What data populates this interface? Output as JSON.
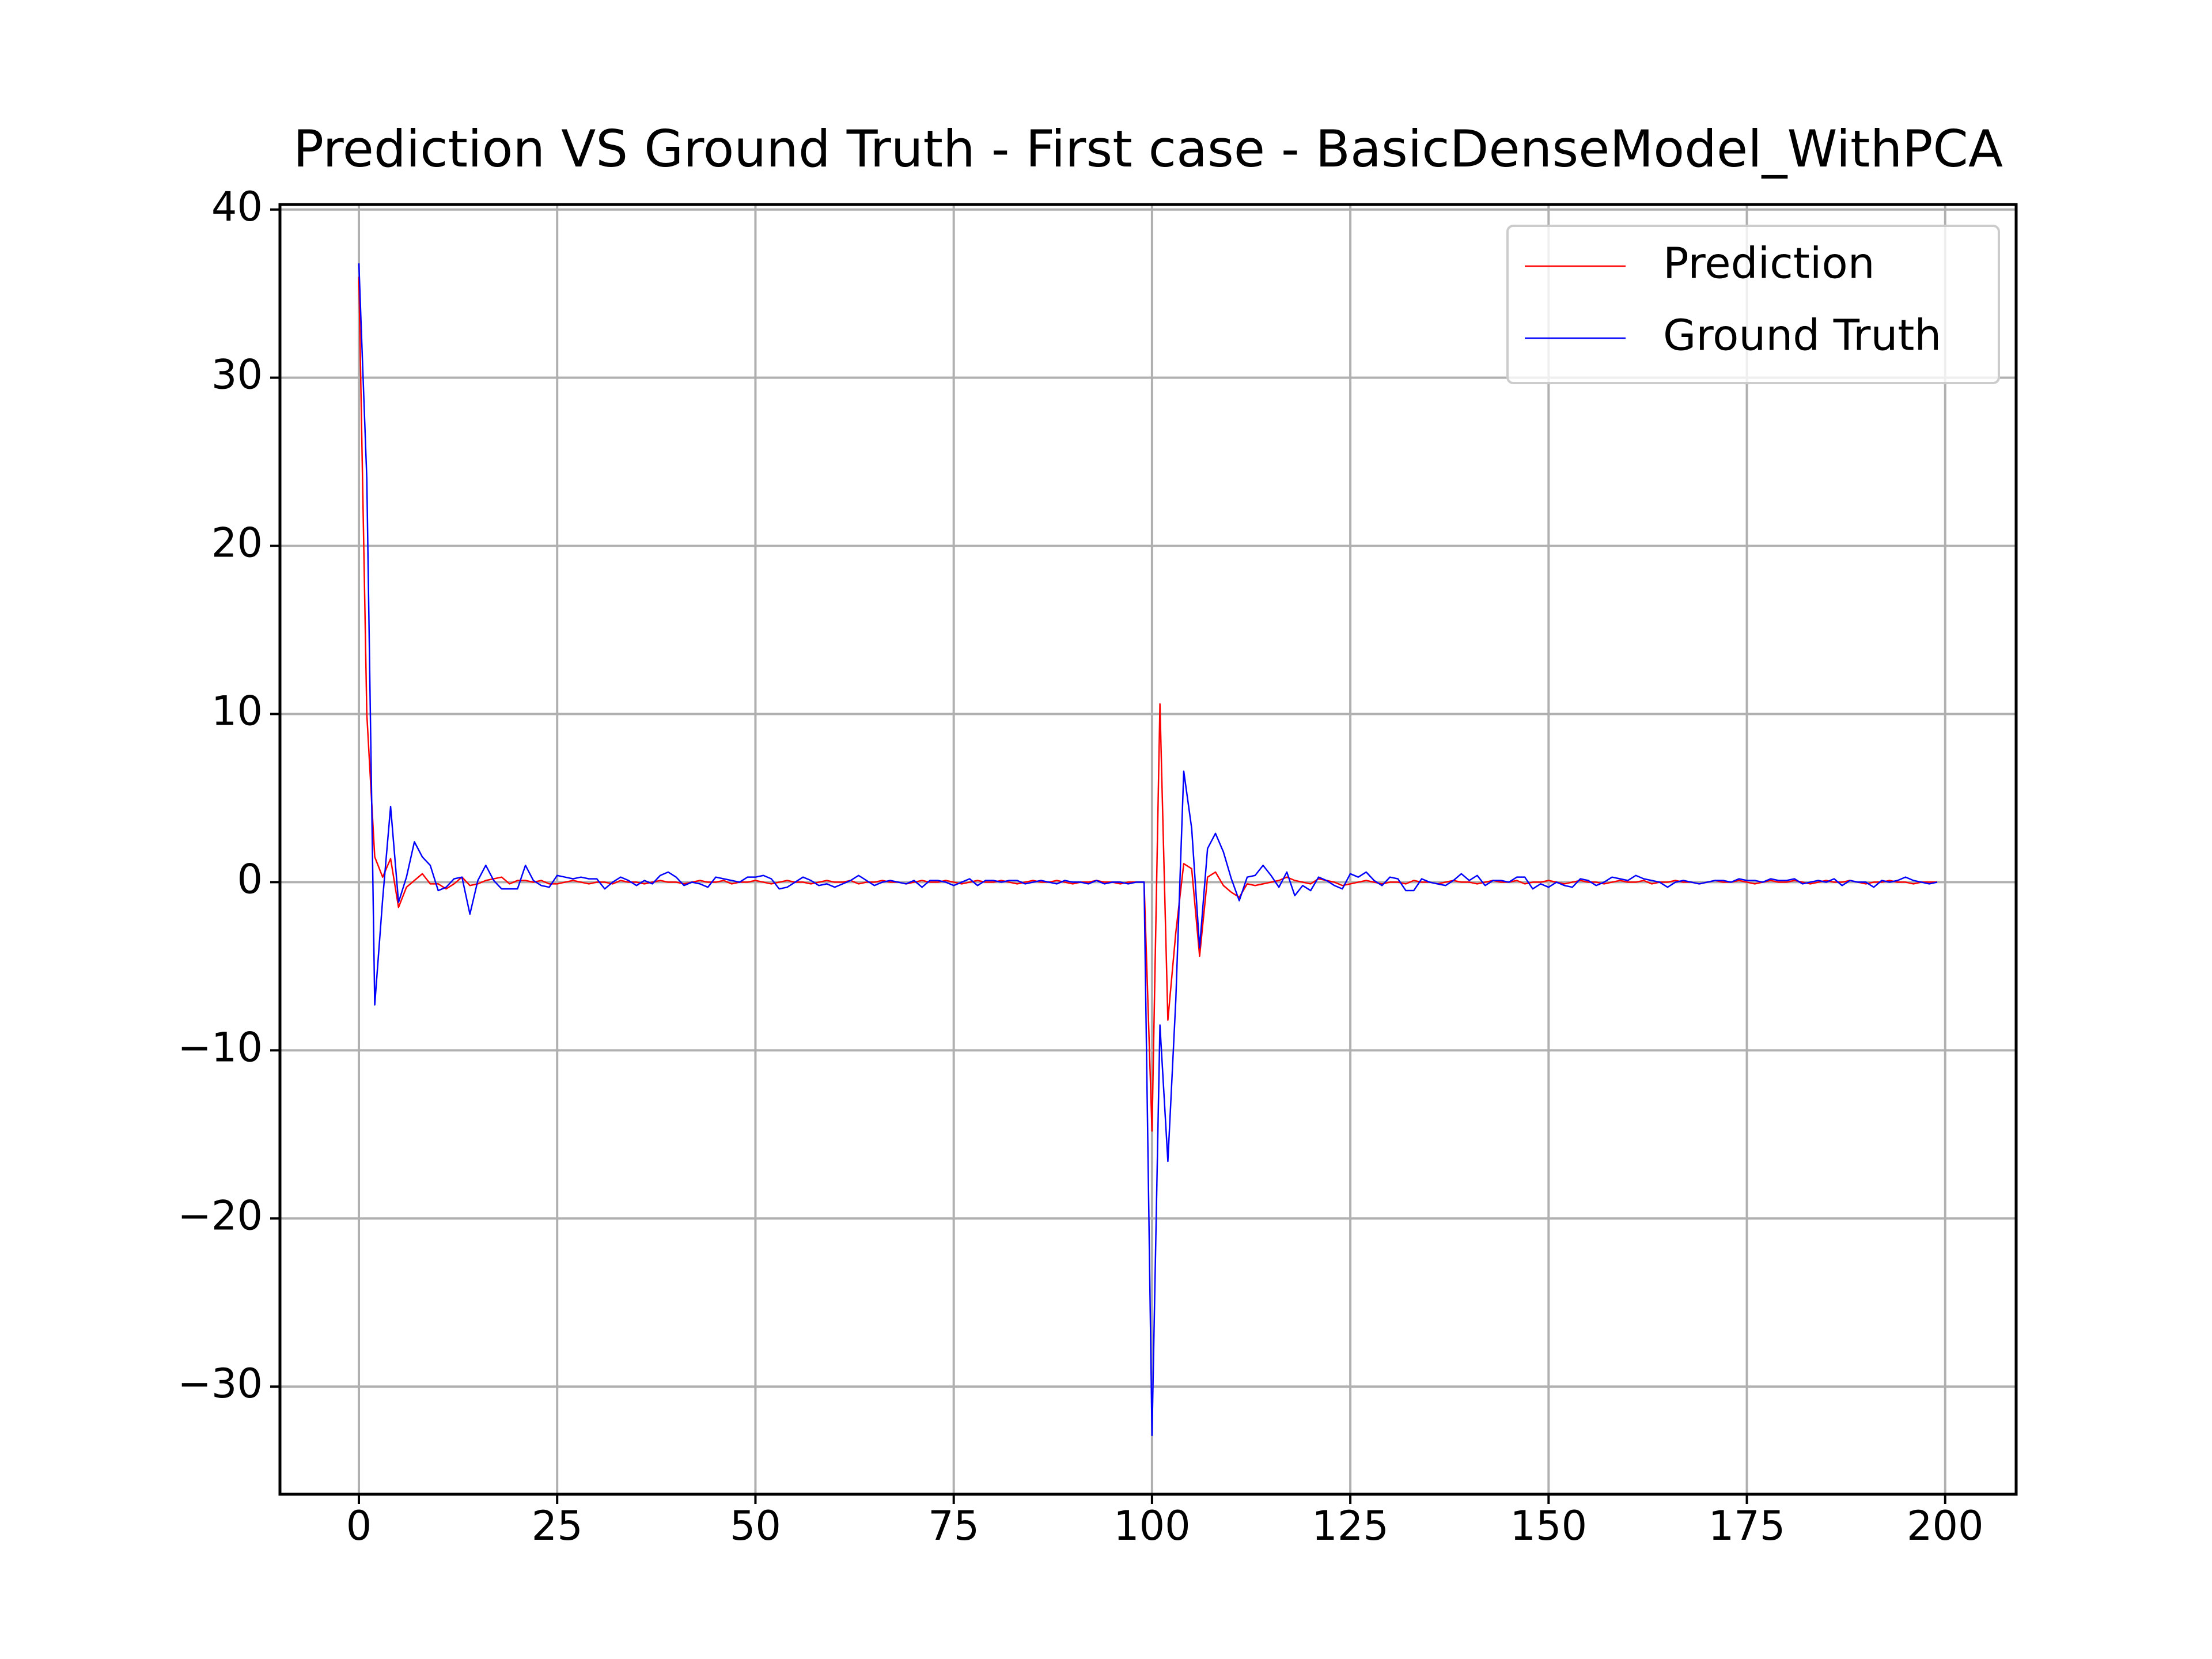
{
  "chart_data": {
    "type": "line",
    "title": "Prediction VS Ground Truth - First case - BasicDenseModel_WithPCA",
    "x": [
      0,
      1,
      2,
      3,
      4,
      5,
      6,
      7,
      8,
      9,
      10,
      11,
      12,
      13,
      14,
      15,
      16,
      17,
      18,
      19,
      20,
      21,
      22,
      23,
      24,
      25,
      26,
      27,
      28,
      29,
      30,
      31,
      32,
      33,
      34,
      35,
      36,
      37,
      38,
      39,
      40,
      41,
      42,
      43,
      44,
      45,
      46,
      47,
      48,
      49,
      50,
      51,
      52,
      53,
      54,
      55,
      56,
      57,
      58,
      59,
      60,
      61,
      62,
      63,
      64,
      65,
      66,
      67,
      68,
      69,
      70,
      71,
      72,
      73,
      74,
      75,
      76,
      77,
      78,
      79,
      80,
      81,
      82,
      83,
      84,
      85,
      86,
      87,
      88,
      89,
      90,
      91,
      92,
      93,
      94,
      95,
      96,
      97,
      98,
      99,
      100,
      101,
      102,
      103,
      104,
      105,
      106,
      107,
      108,
      109,
      110,
      111,
      112,
      113,
      114,
      115,
      116,
      117,
      118,
      119,
      120,
      121,
      122,
      123,
      124,
      125,
      126,
      127,
      128,
      129,
      130,
      131,
      132,
      133,
      134,
      135,
      136,
      137,
      138,
      139,
      140,
      141,
      142,
      143,
      144,
      145,
      146,
      147,
      148,
      149,
      150,
      151,
      152,
      153,
      154,
      155,
      156,
      157,
      158,
      159,
      160,
      161,
      162,
      163,
      164,
      165,
      166,
      167,
      168,
      169,
      170,
      171,
      172,
      173,
      174,
      175,
      176,
      177,
      178,
      179,
      180,
      181,
      182,
      183,
      184,
      185,
      186,
      187,
      188,
      189,
      190,
      191,
      192,
      193,
      194,
      195,
      196,
      197,
      198,
      199
    ],
    "series": [
      {
        "name": "Prediction",
        "color": "#ff0000",
        "values": [
          36.0,
          10.0,
          1.5,
          0.3,
          1.4,
          -1.5,
          -0.3,
          0.1,
          0.5,
          -0.1,
          -0.1,
          -0.4,
          -0.1,
          0.3,
          -0.2,
          -0.1,
          0.1,
          0.2,
          0.3,
          -0.1,
          0.1,
          0.1,
          0.0,
          0.1,
          -0.1,
          -0.1,
          0.0,
          0.1,
          0.0,
          -0.1,
          0.0,
          0.0,
          -0.1,
          0.1,
          0.0,
          0.0,
          -0.1,
          0.0,
          0.1,
          0.0,
          0.0,
          -0.1,
          0.0,
          0.1,
          0.0,
          0.0,
          0.1,
          -0.1,
          0.0,
          0.0,
          0.1,
          0.0,
          -0.1,
          0.0,
          0.1,
          0.0,
          0.0,
          -0.1,
          0.0,
          0.1,
          0.0,
          0.0,
          0.1,
          -0.1,
          0.0,
          0.0,
          0.1,
          0.0,
          0.0,
          -0.1,
          0.0,
          0.1,
          0.0,
          0.0,
          0.1,
          0.0,
          -0.1,
          0.0,
          0.1,
          0.0,
          0.0,
          0.1,
          0.0,
          -0.1,
          0.0,
          0.1,
          0.0,
          0.0,
          0.1,
          0.0,
          -0.1,
          0.0,
          0.0,
          0.1,
          0.0,
          0.0,
          -0.1,
          0.0,
          0.0,
          0.0,
          -14.8,
          10.6,
          -8.2,
          -3.0,
          1.1,
          0.8,
          -4.4,
          0.3,
          0.6,
          -0.2,
          -0.6,
          -0.9,
          -0.1,
          -0.2,
          -0.1,
          0.0,
          0.1,
          0.3,
          0.1,
          0.0,
          -0.1,
          0.2,
          0.1,
          0.0,
          -0.2,
          -0.1,
          0.0,
          0.1,
          0.0,
          -0.1,
          0.0,
          0.0,
          -0.1,
          0.1,
          0.0,
          0.0,
          -0.1,
          0.0,
          0.1,
          0.0,
          0.0,
          -0.1,
          0.0,
          0.1,
          0.0,
          0.0,
          0.1,
          -0.1,
          0.0,
          0.0,
          0.1,
          0.0,
          -0.1,
          0.0,
          0.1,
          0.0,
          0.0,
          -0.1,
          0.0,
          0.1,
          0.0,
          0.0,
          0.1,
          -0.1,
          0.0,
          0.0,
          0.1,
          0.0,
          0.0,
          -0.1,
          0.0,
          0.1,
          0.0,
          0.0,
          0.1,
          0.0,
          -0.1,
          0.0,
          0.1,
          0.0,
          0.0,
          0.1,
          0.0,
          -0.1,
          0.0,
          0.1,
          0.0,
          0.0,
          0.1,
          0.0,
          -0.1,
          0.0,
          0.0,
          0.1,
          0.0,
          0.0,
          -0.1,
          0.0,
          0.0,
          0.0
        ]
      },
      {
        "name": "Ground Truth",
        "color": "#0000ff",
        "values": [
          36.8,
          24.0,
          -7.3,
          -1.0,
          4.5,
          -1.2,
          0.3,
          2.4,
          1.5,
          1.0,
          -0.5,
          -0.3,
          0.2,
          0.3,
          -1.9,
          0.1,
          1.0,
          0.1,
          -0.4,
          -0.4,
          -0.4,
          1.0,
          0.1,
          -0.2,
          -0.3,
          0.4,
          0.3,
          0.2,
          0.3,
          0.2,
          0.2,
          -0.4,
          0.0,
          0.3,
          0.1,
          -0.2,
          0.1,
          -0.1,
          0.4,
          0.6,
          0.3,
          -0.2,
          0.0,
          -0.1,
          -0.3,
          0.3,
          0.2,
          0.1,
          0.0,
          0.3,
          0.3,
          0.4,
          0.2,
          -0.4,
          -0.3,
          0.0,
          0.3,
          0.1,
          -0.2,
          -0.1,
          -0.3,
          -0.1,
          0.1,
          0.4,
          0.1,
          -0.2,
          0.0,
          0.1,
          0.0,
          -0.1,
          0.1,
          -0.3,
          0.1,
          0.1,
          0.0,
          -0.2,
          0.0,
          0.2,
          -0.2,
          0.1,
          0.1,
          0.0,
          0.1,
          0.1,
          -0.1,
          0.0,
          0.1,
          0.0,
          -0.1,
          0.1,
          0.0,
          0.0,
          -0.1,
          0.1,
          -0.1,
          0.0,
          0.0,
          -0.1,
          0.0,
          0.0,
          -32.9,
          -8.5,
          -16.6,
          -7.0,
          6.6,
          3.2,
          -3.9,
          2.0,
          2.9,
          1.8,
          0.2,
          -1.1,
          0.3,
          0.4,
          1.0,
          0.4,
          -0.3,
          0.6,
          -0.8,
          -0.2,
          -0.5,
          0.3,
          0.1,
          -0.2,
          -0.4,
          0.5,
          0.3,
          0.6,
          0.1,
          -0.2,
          0.3,
          0.2,
          -0.5,
          -0.5,
          0.2,
          0.0,
          -0.1,
          -0.2,
          0.1,
          0.5,
          0.1,
          0.4,
          -0.2,
          0.1,
          0.1,
          0.0,
          0.3,
          0.3,
          -0.4,
          -0.1,
          -0.3,
          0.0,
          -0.2,
          -0.3,
          0.2,
          0.1,
          -0.2,
          0.0,
          0.3,
          0.2,
          0.1,
          0.4,
          0.2,
          0.1,
          0.0,
          -0.3,
          0.0,
          0.1,
          0.0,
          -0.1,
          0.0,
          0.1,
          0.1,
          0.0,
          0.2,
          0.1,
          0.1,
          0.0,
          0.2,
          0.1,
          0.1,
          0.2,
          -0.1,
          0.0,
          0.1,
          0.0,
          0.2,
          -0.2,
          0.1,
          0.0,
          0.0,
          -0.3,
          0.1,
          0.0,
          0.1,
          0.3,
          0.1,
          0.0,
          -0.1,
          0.0
        ]
      }
    ],
    "xlim": [
      -9.95,
      208.95
    ],
    "ylim": [
      -36.4,
      40.3
    ],
    "xticks": [
      0,
      25,
      50,
      75,
      100,
      125,
      150,
      175,
      200
    ],
    "yticks": [
      {
        "value": -30,
        "label": "−30"
      },
      {
        "value": -20,
        "label": "−20"
      },
      {
        "value": -10,
        "label": "−10"
      },
      0,
      10,
      20,
      30,
      40
    ],
    "grid": true,
    "legend": "upper right"
  }
}
